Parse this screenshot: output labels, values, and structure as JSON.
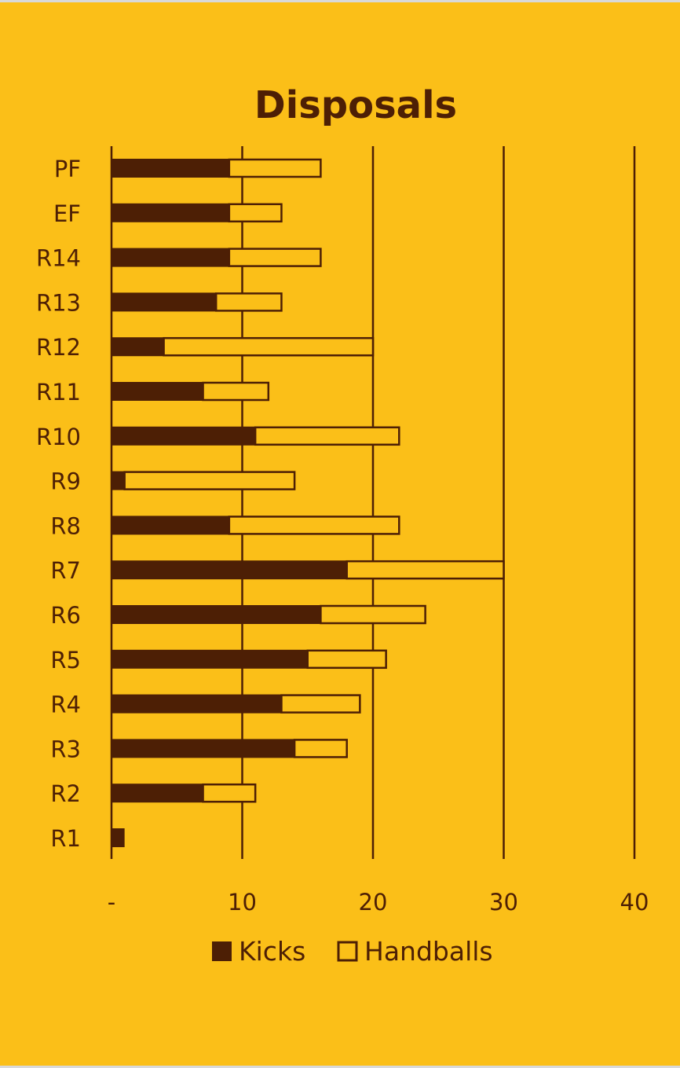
{
  "colors": {
    "background": "#FBBF18",
    "kicks": "#4D1F05",
    "handballs_fill": "#FBBF18",
    "ink": "#4D1F05"
  },
  "chart_data": {
    "type": "bar",
    "orientation": "horizontal",
    "stacked": true,
    "title": "Disposals",
    "categories": [
      "R1",
      "R2",
      "R3",
      "R4",
      "R5",
      "R6",
      "R7",
      "R8",
      "R9",
      "R10",
      "R11",
      "R12",
      "R13",
      "R14",
      "EF",
      "PF"
    ],
    "series": [
      {
        "name": "Kicks",
        "values": [
          1,
          7,
          14,
          13,
          15,
          16,
          18,
          9,
          1,
          11,
          7,
          4,
          8,
          9,
          9,
          9
        ]
      },
      {
        "name": "Handballs",
        "values": [
          0,
          4,
          4,
          6,
          6,
          8,
          12,
          13,
          13,
          11,
          5,
          16,
          5,
          7,
          4,
          7
        ]
      }
    ],
    "xlim": [
      0,
      40
    ],
    "xticks": [
      0,
      10,
      20,
      30,
      40
    ],
    "xtick_labels": [
      "-",
      "10",
      "20",
      "30",
      "40"
    ],
    "grid": true,
    "legend_position": "bottom"
  }
}
